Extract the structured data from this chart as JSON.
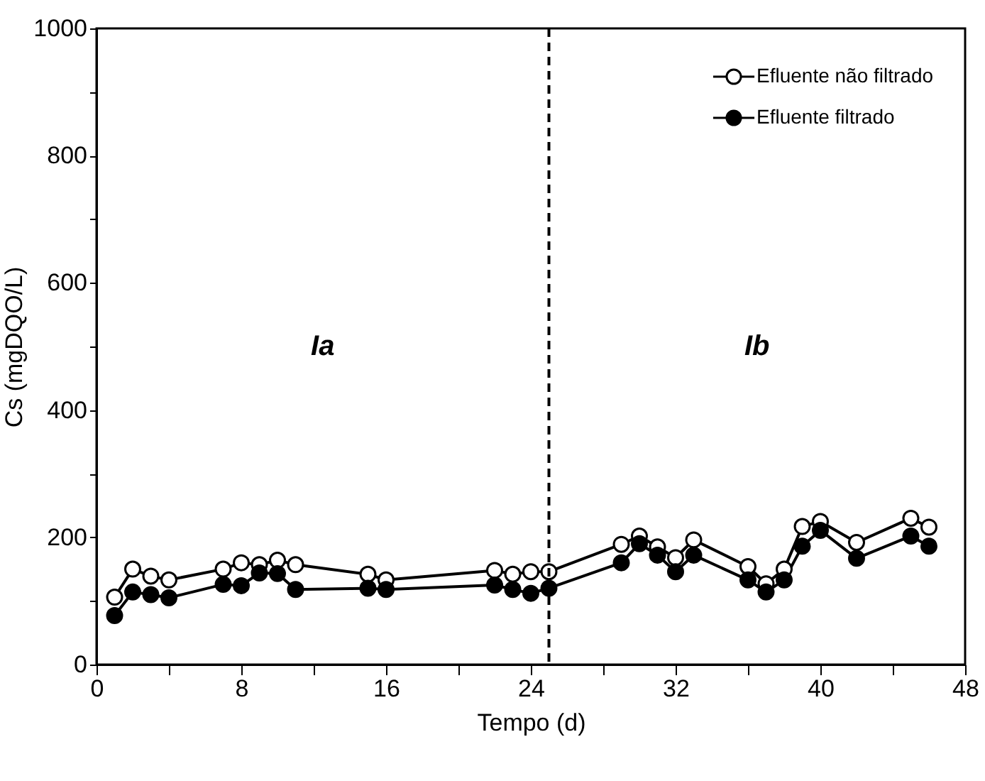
{
  "chart_data": {
    "type": "line",
    "xlabel": "Tempo (d)",
    "ylabel": "Cs (mgDQO/L)",
    "x": [
      1,
      2,
      3,
      4,
      7,
      8,
      9,
      10,
      11,
      15,
      16,
      22,
      23,
      24,
      25,
      29,
      30,
      31,
      32,
      33,
      36,
      37,
      38,
      39,
      40,
      42,
      45,
      46
    ],
    "series": [
      {
        "name": "Efluente não filtrado",
        "color": "#000000",
        "values": [
          106,
          150,
          139,
          133,
          150,
          160,
          157,
          164,
          157,
          142,
          133,
          148,
          142,
          146,
          146,
          189,
          202,
          185,
          168,
          196,
          154,
          127,
          150,
          217,
          225,
          192,
          230,
          216
        ]
      },
      {
        "name": "Efluente filtrado",
        "color": "#000000",
        "values": [
          77,
          114,
          110,
          105,
          126,
          124,
          144,
          143,
          118,
          120,
          118,
          125,
          118,
          112,
          120,
          160,
          190,
          172,
          146,
          172,
          133,
          114,
          133,
          186,
          211,
          167,
          202,
          186
        ]
      }
    ],
    "xlim": [
      0,
      48
    ],
    "xticks": [
      0,
      {
        "value": 4,
        "label": null
      },
      8,
      {
        "value": 12,
        "label": null
      },
      16,
      {
        "value": 20,
        "label": null
      },
      24,
      {
        "value": 28,
        "label": null
      },
      32,
      {
        "value": 36,
        "label": null
      },
      40,
      {
        "value": 44,
        "label": null
      },
      48
    ],
    "ylim": [
      0,
      1000
    ],
    "yticks": [
      0,
      {
        "value": 100,
        "label": null
      },
      200,
      {
        "value": 300,
        "label": null
      },
      400,
      {
        "value": 500,
        "label": null
      },
      600,
      {
        "value": 700,
        "label": null
      },
      800,
      {
        "value": 900,
        "label": null
      },
      1000
    ],
    "ref_lines": [
      {
        "axis": "x",
        "value": 25,
        "line_style": "dashed"
      }
    ],
    "annotations": [
      "Ia",
      "Ib"
    ],
    "marker": "circle",
    "line_style": "solid",
    "grid": false,
    "legend": "top right"
  }
}
